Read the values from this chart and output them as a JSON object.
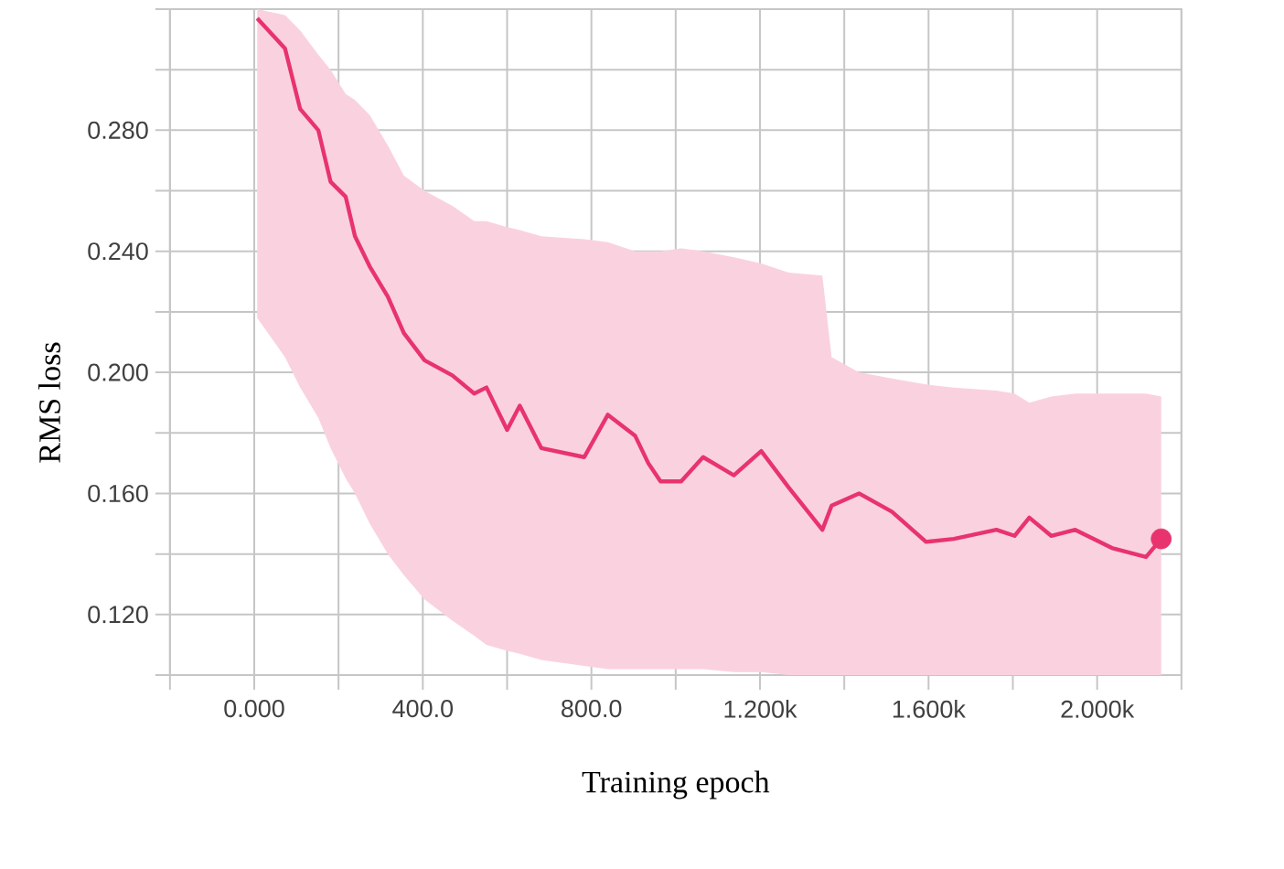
{
  "chart_data": {
    "type": "line",
    "xlabel": "Training epoch",
    "ylabel": "RMS loss",
    "xlim": [
      -200,
      2200
    ],
    "ylim": [
      0.1,
      0.32
    ],
    "xticks": [
      {
        "value": -200,
        "label": null
      },
      {
        "value": 0,
        "label": "0.000"
      },
      {
        "value": 200,
        "label": null
      },
      {
        "value": 400,
        "label": "400.0"
      },
      {
        "value": 600,
        "label": null
      },
      {
        "value": 800,
        "label": "800.0"
      },
      {
        "value": 1000,
        "label": null
      },
      {
        "value": 1200,
        "label": "1.200k"
      },
      {
        "value": 1400,
        "label": null
      },
      {
        "value": 1600,
        "label": "1.600k"
      },
      {
        "value": 1800,
        "label": null
      },
      {
        "value": 2000,
        "label": "2.000k"
      },
      {
        "value": 2200,
        "label": null
      }
    ],
    "yticks": [
      {
        "value": 0.1,
        "label": null
      },
      {
        "value": 0.12,
        "label": "0.120"
      },
      {
        "value": 0.14,
        "label": null
      },
      {
        "value": 0.16,
        "label": "0.160"
      },
      {
        "value": 0.18,
        "label": null
      },
      {
        "value": 0.2,
        "label": "0.200"
      },
      {
        "value": 0.22,
        "label": null
      },
      {
        "value": 0.24,
        "label": "0.240"
      },
      {
        "value": 0.26,
        "label": null
      },
      {
        "value": 0.28,
        "label": "0.280"
      },
      {
        "value": 0.3,
        "label": null
      },
      {
        "value": 0.32,
        "label": null
      }
    ],
    "grid": true,
    "series": [
      {
        "color": "#e8336f",
        "x": [
          7,
          73,
          109,
          152,
          181,
          217,
          239,
          274,
          317,
          355,
          404,
          470,
          522,
          551,
          600,
          630,
          681,
          783,
          839,
          904,
          935,
          964,
          1013,
          1065,
          1138,
          1203,
          1268,
          1348,
          1370,
          1435,
          1513,
          1594,
          1660,
          1761,
          1804,
          1839,
          1891,
          1948,
          2035,
          2116,
          2152
        ],
        "values": [
          0.317,
          0.307,
          0.287,
          0.28,
          0.263,
          0.258,
          0.245,
          0.235,
          0.225,
          0.213,
          0.204,
          0.199,
          0.193,
          0.195,
          0.181,
          0.189,
          0.175,
          0.172,
          0.186,
          0.179,
          0.17,
          0.164,
          0.164,
          0.172,
          0.166,
          0.174,
          0.162,
          0.148,
          0.156,
          0.16,
          0.154,
          0.144,
          0.145,
          0.148,
          0.146,
          0.152,
          0.146,
          0.148,
          0.142,
          0.139,
          0.145
        ],
        "upper": [
          0.32,
          0.318,
          0.313,
          0.305,
          0.3,
          0.292,
          0.29,
          0.285,
          0.275,
          0.265,
          0.26,
          0.255,
          0.25,
          0.25,
          0.248,
          0.247,
          0.245,
          0.244,
          0.243,
          0.24,
          0.24,
          0.24,
          0.241,
          0.24,
          0.238,
          0.236,
          0.233,
          0.232,
          0.205,
          0.2,
          0.198,
          0.196,
          0.195,
          0.194,
          0.193,
          0.19,
          0.192,
          0.193,
          0.193,
          0.193,
          0.192
        ],
        "lower": [
          0.218,
          0.205,
          0.195,
          0.185,
          0.175,
          0.165,
          0.16,
          0.15,
          0.14,
          0.133,
          0.125,
          0.118,
          0.113,
          0.11,
          0.108,
          0.107,
          0.105,
          0.103,
          0.102,
          0.102,
          0.102,
          0.102,
          0.102,
          0.102,
          0.101,
          0.101,
          0.1,
          0.1,
          0.1,
          0.1,
          0.1,
          0.1,
          0.1,
          0.1,
          0.1,
          0.1,
          0.1,
          0.1,
          0.1,
          0.1,
          0.1
        ]
      },
      {
        "type": "scatter",
        "color": "#e8336f",
        "x": [
          2152
        ],
        "values": [
          0.145
        ],
        "marker": "circle"
      }
    ]
  }
}
